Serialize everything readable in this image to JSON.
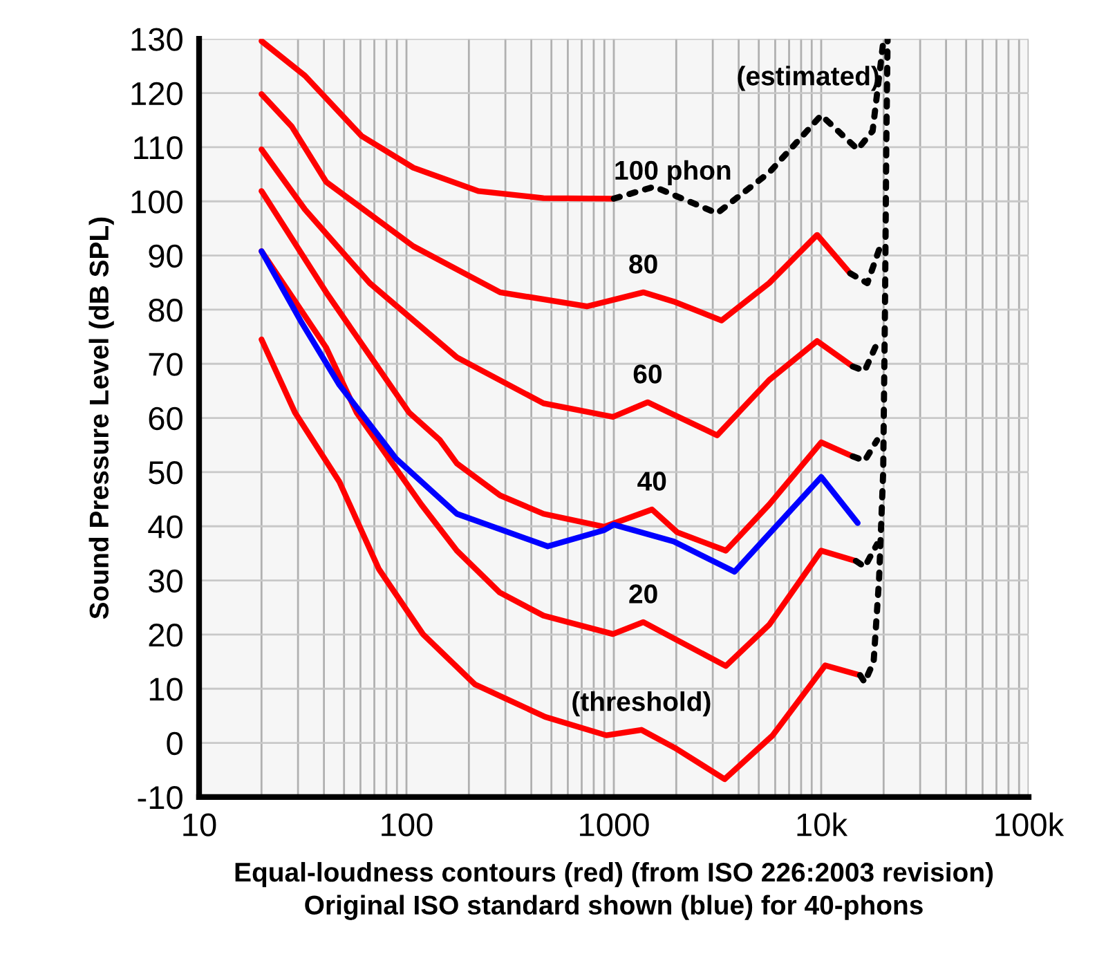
{
  "chart_data": {
    "type": "line",
    "xlabel": "Equal-loudness contours (red) (from ISO 226:2003 revision)\nOriginal ISO standard shown (blue) for 40-phons",
    "ylabel": "Sound Pressure Level (dB SPL)",
    "log": "x",
    "xlim": [
      10,
      100000
    ],
    "xticks": [
      10,
      100,
      1000,
      {
        "value": 10000,
        "label": "10k"
      },
      {
        "value": 100000,
        "label": "100k"
      }
    ],
    "ylim": [
      -10,
      130
    ],
    "yticks": [
      -10,
      0,
      10,
      20,
      30,
      40,
      50,
      60,
      70,
      80,
      90,
      100,
      110,
      120,
      130
    ],
    "grid": true,
    "line_style": "solid",
    "series": [
      {
        "name": "(threshold)",
        "color": "#ff0000",
        "x": [
          20,
          29,
          47.5,
          73.6,
          120,
          214,
          467,
          920,
          1358,
          2005,
          3420,
          5840,
          10450,
          15400
        ],
        "values": [
          74.5,
          61,
          48.2,
          32.1,
          20.1,
          10.8,
          4.8,
          1.4,
          2.4,
          -1.1,
          -6.7,
          1.4,
          14.3,
          12.5
        ]
      },
      {
        "name": "20",
        "color": "#ff0000",
        "x": [
          20,
          41,
          57.5,
          118,
          175,
          281,
          458,
          990,
          1387,
          1945,
          3470,
          5610,
          10000,
          14700
        ],
        "values": [
          90.8,
          73,
          61,
          44,
          35.5,
          27.8,
          23.5,
          20.1,
          22.3,
          19.3,
          14.2,
          21.8,
          35.5,
          33.6
        ]
      },
      {
        "name": "40",
        "color": "#ff0000",
        "x": [
          20,
          41,
          103,
          145,
          175,
          283,
          458,
          900,
          1528,
          2020,
          3470,
          5610,
          10000,
          14200
        ],
        "values": [
          101.9,
          83.2,
          61,
          55.9,
          51.6,
          45.7,
          42.3,
          39.9,
          43.1,
          38.9,
          35.5,
          44,
          55.5,
          52.9
        ]
      },
      {
        "name": "60",
        "color": "#ff0000",
        "x": [
          20,
          32.4,
          66.5,
          175,
          458,
          990,
          1456,
          1850,
          3150,
          5610,
          9560,
          14200
        ],
        "values": [
          109.6,
          98.5,
          84.9,
          71.2,
          62.7,
          60.2,
          62.9,
          61,
          56.8,
          67,
          74.2,
          69.5
        ]
      },
      {
        "name": "80",
        "color": "#ff0000",
        "x": [
          20,
          28,
          41,
          108,
          283,
          741,
          1387,
          1945,
          3310,
          5610,
          9560,
          13800
        ],
        "values": [
          119.8,
          113.8,
          103.6,
          91.7,
          83.2,
          80.6,
          83.2,
          81.5,
          78,
          84.9,
          93.8,
          86.7
        ]
      },
      {
        "name": "100 phon",
        "color": "#ff0000",
        "x": [
          20,
          32.4,
          60.6,
          108,
          222,
          458,
          1000
        ],
        "values": [
          129.6,
          123.2,
          112.1,
          106.2,
          101.9,
          100.6,
          100.5
        ]
      },
      {
        "color": "#0000ff",
        "x": [
          20,
          30.8,
          47.5,
          89,
          175,
          480,
          900,
          1000,
          1945,
          3820,
          10000,
          15000
        ],
        "values": [
          90.8,
          78,
          66.1,
          52.5,
          42.3,
          36.3,
          39.3,
          40.3,
          37.2,
          31.6,
          49.1,
          40.6
        ]
      },
      {
        "color": "#000000",
        "line_style": "dotted",
        "x": [
          1000,
          1563,
          3150,
          5610,
          10000,
          15000,
          17700,
          20000
        ],
        "values": [
          100.5,
          102.7,
          97.8,
          105.3,
          115.9,
          109.6,
          113,
          130
        ]
      },
      {
        "color": "#000000",
        "line_style": "dotted",
        "x": [
          13800,
          16700,
          19600
        ],
        "values": [
          86.7,
          84.9,
          92.5
        ]
      },
      {
        "color": "#000000",
        "line_style": "dotted",
        "x": [
          14200,
          16200,
          18600
        ],
        "values": [
          69.5,
          68.7,
          73.8
        ]
      },
      {
        "color": "#000000",
        "line_style": "dotted",
        "x": [
          14200,
          16200,
          18600
        ],
        "values": [
          52.9,
          52.1,
          55.9
        ]
      },
      {
        "color": "#000000",
        "line_style": "dotted",
        "x": [
          14700,
          16200,
          18600
        ],
        "values": [
          33.6,
          32.5,
          36.7
        ]
      },
      {
        "name": "(estimated)",
        "color": "#000000",
        "line_style": "dotted",
        "x": [
          15400,
          16200,
          17900,
          19000,
          19900,
          20300,
          20600,
          20900
        ],
        "values": [
          12.5,
          11.2,
          15,
          30,
          50,
          80,
          110,
          130
        ]
      }
    ]
  }
}
